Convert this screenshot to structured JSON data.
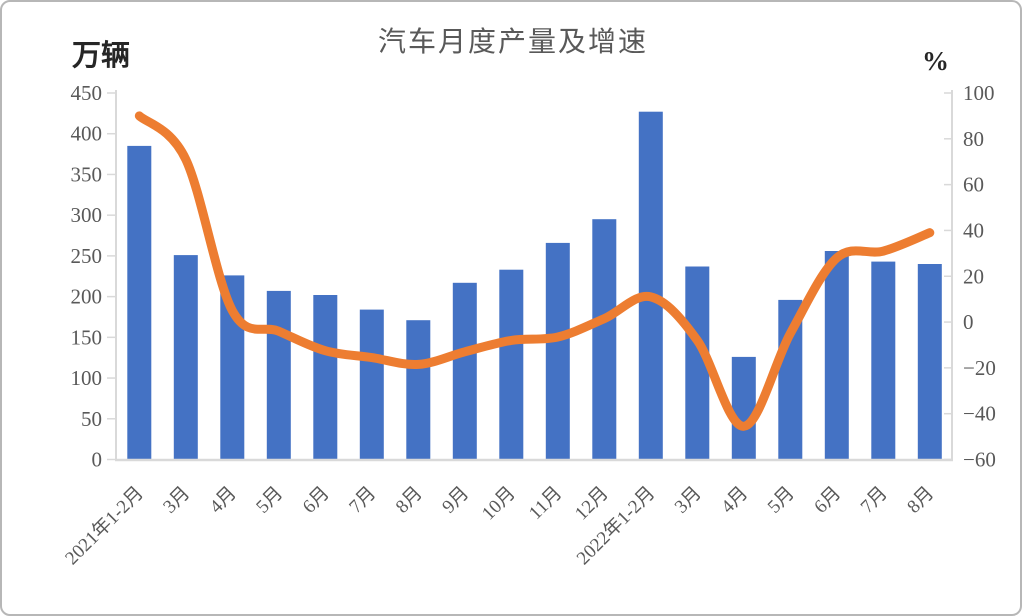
{
  "chart": {
    "title": "汽车月度产量及增速",
    "left_axis_unit": "万辆",
    "right_axis_unit": "%"
  },
  "chart_data": {
    "type": "bar+line",
    "title": "汽车月度产量及增速",
    "categories": [
      "2021年1-2月",
      "3月",
      "4月",
      "5月",
      "6月",
      "7月",
      "8月",
      "9月",
      "10月",
      "11月",
      "12月",
      "2022年1-2月",
      "3月",
      "4月",
      "5月",
      "6月",
      "7月",
      "8月"
    ],
    "series": [
      {
        "name": "产量",
        "type": "bar",
        "axis": "left",
        "unit": "万辆",
        "color": "#4472C4",
        "values": [
          385,
          251,
          226,
          207,
          202,
          184,
          171,
          217,
          233,
          266,
          295,
          427,
          237,
          126,
          196,
          256,
          243,
          240
        ]
      },
      {
        "name": "增速",
        "type": "line",
        "axis": "right",
        "unit": "%",
        "color": "#ED7D31",
        "smooth": true,
        "values": [
          90,
          71,
          5,
          -4,
          -12.5,
          -15.5,
          -18.5,
          -13,
          -8,
          -6.5,
          1.5,
          11,
          -8,
          -45.5,
          -5,
          28,
          31,
          39
        ]
      }
    ],
    "left_axis": {
      "unit": "万辆",
      "min": 0,
      "max": 450,
      "step": 50,
      "tick_labels": [
        "450",
        "400",
        "350",
        "300",
        "250",
        "200",
        "150",
        "100",
        "50",
        "0"
      ]
    },
    "right_axis": {
      "unit": "%",
      "min": -60,
      "max": 100,
      "step": 20,
      "tick_labels": [
        "100",
        "80",
        "60",
        "40",
        "20",
        "0",
        "−20",
        "−40",
        "−60"
      ]
    },
    "grid": false,
    "legend": "none",
    "axis_line_color": "#d9d9d9",
    "tick_label_color": "#595959",
    "title_color": "#595959"
  }
}
